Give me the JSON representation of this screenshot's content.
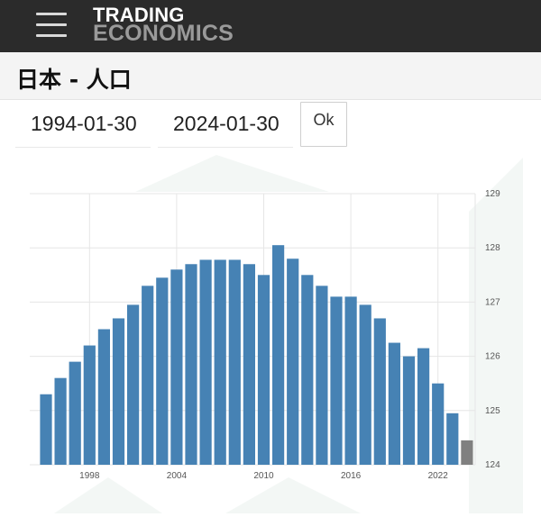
{
  "header": {
    "menu_icon": "hamburger-menu-icon",
    "logo_line1": "TRADING",
    "logo_line2": "ECONOMICS"
  },
  "page": {
    "title": "日本 - 人口"
  },
  "date_range": {
    "start": "1994-01-30",
    "end": "2024-01-30",
    "ok_label": "Ok"
  },
  "colors": {
    "bar": "#4682b4",
    "bar_forecast": "#808080",
    "grid": "#e6e6e6",
    "watermark": "#f3f7f5"
  },
  "chart_data": {
    "type": "bar",
    "x": [
      1995,
      1996,
      1997,
      1998,
      1999,
      2000,
      2001,
      2002,
      2003,
      2004,
      2005,
      2006,
      2007,
      2008,
      2009,
      2010,
      2011,
      2012,
      2013,
      2014,
      2015,
      2016,
      2017,
      2018,
      2019,
      2020,
      2021,
      2022,
      2023
    ],
    "values": [
      125.3,
      125.6,
      125.9,
      126.2,
      126.5,
      126.7,
      126.95,
      127.3,
      127.45,
      127.6,
      127.7,
      127.78,
      127.78,
      127.78,
      127.7,
      127.5,
      128.05,
      127.8,
      127.5,
      127.3,
      127.1,
      127.1,
      126.95,
      126.7,
      126.25,
      126.0,
      126.15,
      125.5,
      124.95
    ],
    "forecast_x": [
      2023
    ],
    "forecast_values": [
      124.45
    ],
    "xticks": [
      "1998",
      "2004",
      "2010",
      "2016",
      "2022"
    ],
    "yticks": [
      "124",
      "125",
      "126",
      "127",
      "128",
      "129"
    ],
    "ylim": [
      124,
      129
    ],
    "y_axis_position": "right",
    "grid": true,
    "legend": "none"
  }
}
